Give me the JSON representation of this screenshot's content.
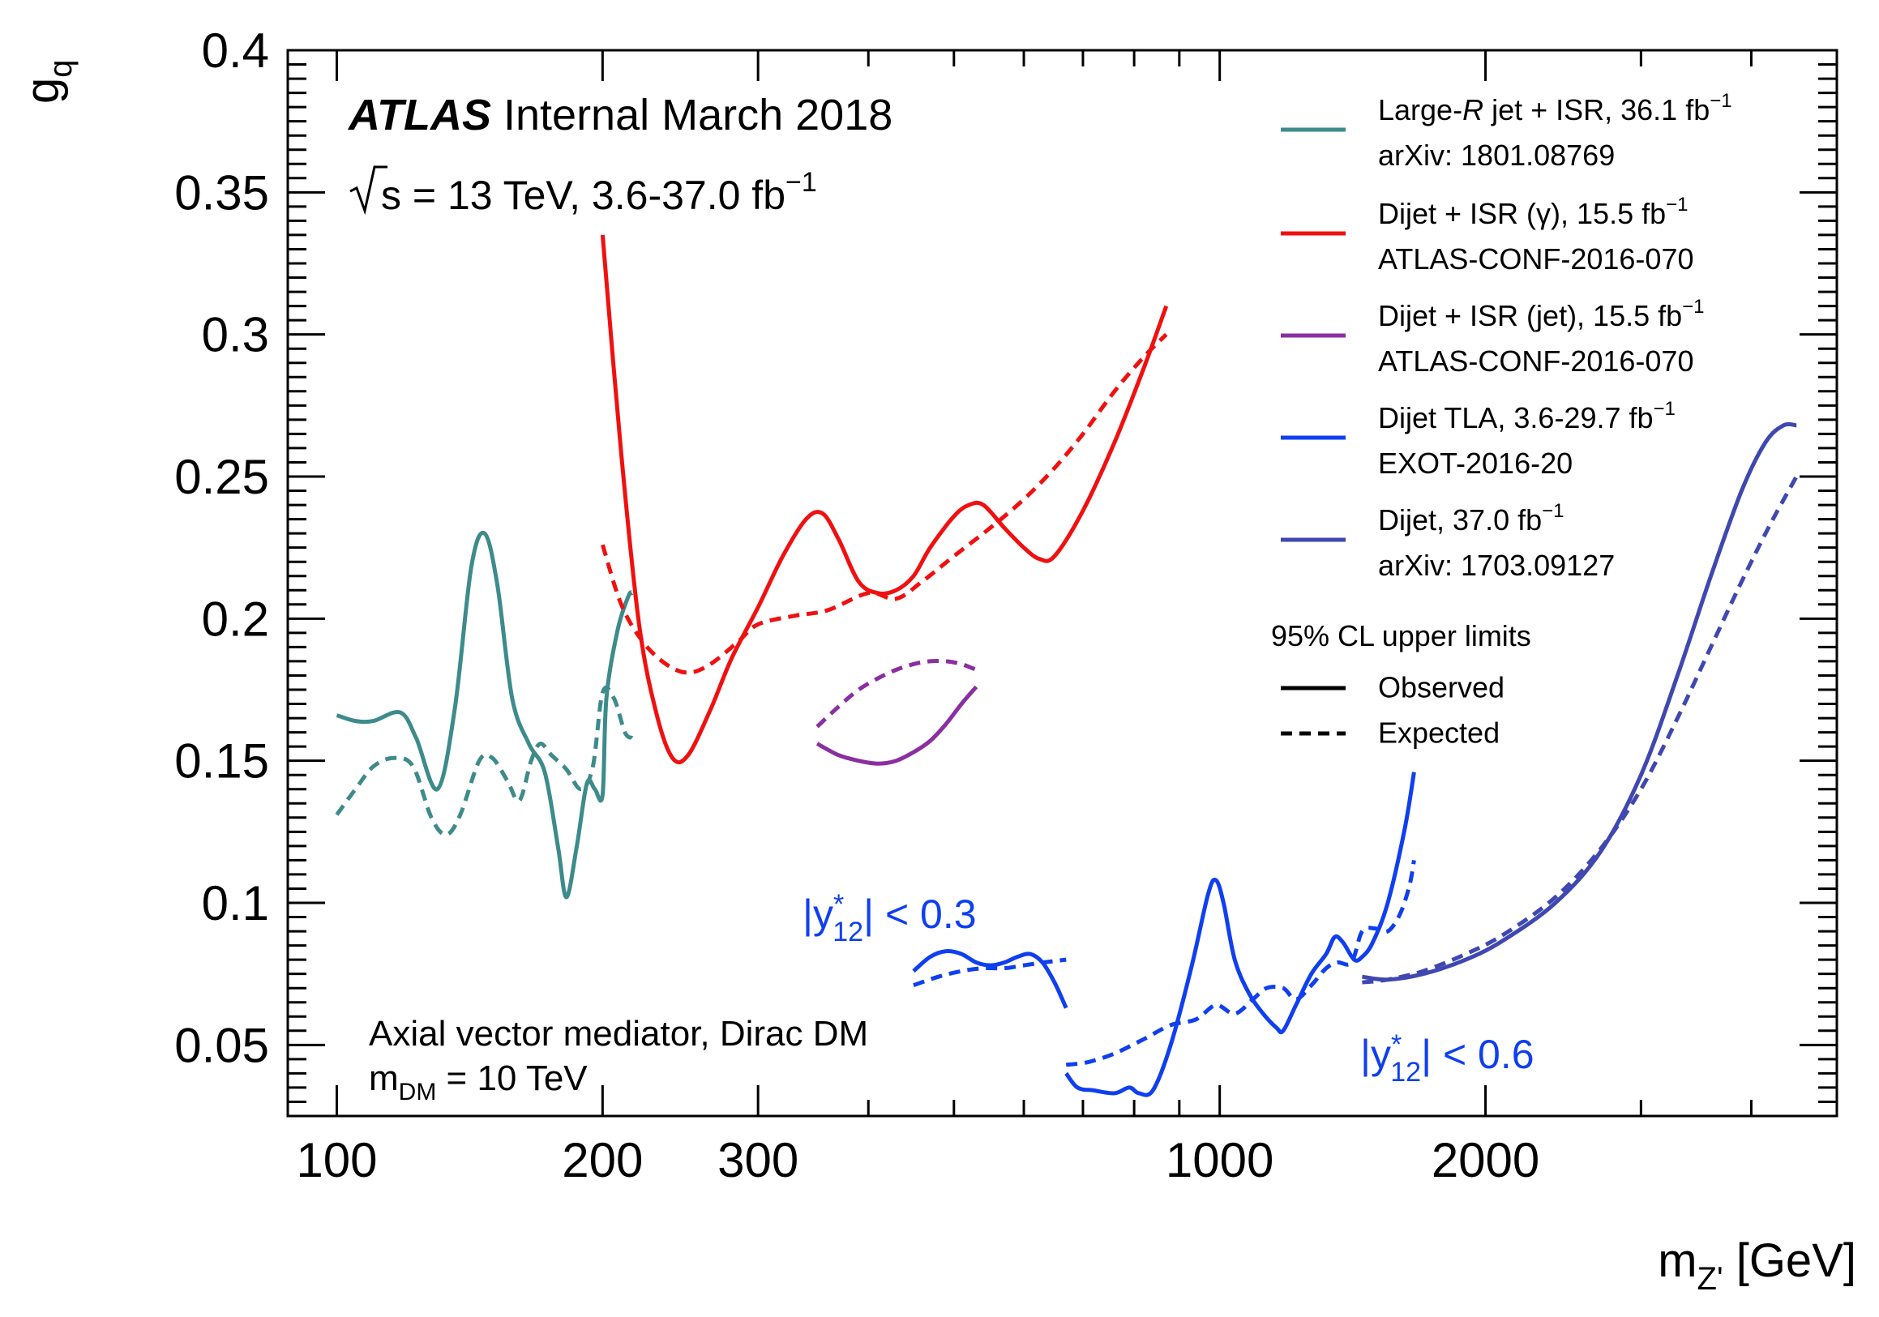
{
  "chart_data": {
    "type": "line",
    "x_scale": "log",
    "xlim": [
      88,
      5000
    ],
    "ylim": [
      0.025,
      0.4
    ],
    "xlabel": {
      "main": "m",
      "sub": "Z'",
      "rest": " [GeV]"
    },
    "ylabel": {
      "main": "g",
      "sub": "q"
    },
    "x_tick_labels": [
      {
        "value": 100,
        "label": "100"
      },
      {
        "value": 200,
        "label": "200"
      },
      {
        "value": 300,
        "label": "300"
      },
      {
        "value": 1000,
        "label": "1000"
      },
      {
        "value": 2000,
        "label": "2000"
      }
    ],
    "y_tick_labels": [
      {
        "value": 0.05,
        "label": "0.05"
      },
      {
        "value": 0.1,
        "label": "0.1"
      },
      {
        "value": 0.15,
        "label": "0.15"
      },
      {
        "value": 0.2,
        "label": "0.2"
      },
      {
        "value": 0.25,
        "label": "0.25"
      },
      {
        "value": 0.3,
        "label": "0.3"
      },
      {
        "value": 0.35,
        "label": "0.35"
      },
      {
        "value": 0.4,
        "label": "0.4"
      }
    ],
    "header": {
      "atlas": "ATLAS",
      "status": "Internal March 2018",
      "energy_prefix": "s = 13 TeV, 3.6-37.0 fb",
      "energy_sup": "−1"
    },
    "model_label": {
      "line1": "Axial vector mediator, Dirac DM",
      "line2_main": "m",
      "line2_sub": "DM",
      "line2_rest": " = 10 TeV"
    },
    "legend": {
      "entries": [
        {
          "series": "large_r",
          "line1_a": "Large-",
          "line1_i": "R",
          "line1_b": " jet + ISR, 36.1 fb",
          "sup": "−1",
          "line2": "arXiv: 1801.08769"
        },
        {
          "series": "isr_gamma",
          "line1_a": "Dijet + ISR (γ), 15.5 fb",
          "line1_i": "",
          "line1_b": "",
          "sup": "−1",
          "line2": "ATLAS-CONF-2016-070"
        },
        {
          "series": "isr_jet",
          "line1_a": "Dijet + ISR (jet), 15.5 fb",
          "line1_i": "",
          "line1_b": "",
          "sup": "−1",
          "line2": "ATLAS-CONF-2016-070"
        },
        {
          "series": "tla",
          "line1_a": "Dijet TLA, 3.6-29.7 fb",
          "line1_i": "",
          "line1_b": "",
          "sup": "−1",
          "line2": "EXOT-2016-20"
        },
        {
          "series": "dijet",
          "line1_a": "Dijet, 37.0 fb",
          "line1_i": "",
          "line1_b": "",
          "sup": "−1",
          "line2": "arXiv: 1703.09127"
        }
      ],
      "cl_title": "95% CL upper limits",
      "observed": "Observed",
      "expected": "Expected"
    },
    "annotations": [
      {
        "id": "tla03",
        "pre": "|y",
        "sup": "*",
        "sub": "12",
        "post": "| < 0.3",
        "color": "#0f3ff0"
      },
      {
        "id": "tla06",
        "pre": "|y",
        "sup": "*",
        "sub": "12",
        "post": "| < 0.6",
        "color": "#0f3ff0"
      }
    ],
    "series": [
      {
        "id": "large_r",
        "color": "#3d8b8b",
        "observed": [
          [
            100,
            0.166
          ],
          [
            105,
            0.164
          ],
          [
            110,
            0.164
          ],
          [
            118,
            0.167
          ],
          [
            123,
            0.158
          ],
          [
            130,
            0.14
          ],
          [
            136,
            0.168
          ],
          [
            142,
            0.218
          ],
          [
            147,
            0.23
          ],
          [
            152,
            0.212
          ],
          [
            158,
            0.172
          ],
          [
            165,
            0.156
          ],
          [
            172,
            0.146
          ],
          [
            178,
            0.12
          ],
          [
            182,
            0.102
          ],
          [
            187,
            0.12
          ],
          [
            192,
            0.142
          ],
          [
            196,
            0.14
          ],
          [
            200,
            0.138
          ],
          [
            202,
            0.172
          ],
          [
            208,
            0.196
          ],
          [
            214,
            0.208
          ],
          [
            216,
            0.209
          ]
        ],
        "expected": [
          [
            100,
            0.131
          ],
          [
            105,
            0.14
          ],
          [
            110,
            0.148
          ],
          [
            116,
            0.151
          ],
          [
            122,
            0.148
          ],
          [
            128,
            0.13
          ],
          [
            133,
            0.124
          ],
          [
            138,
            0.131
          ],
          [
            145,
            0.15
          ],
          [
            150,
            0.151
          ],
          [
            156,
            0.143
          ],
          [
            161,
            0.136
          ],
          [
            166,
            0.15
          ],
          [
            170,
            0.156
          ],
          [
            175,
            0.152
          ],
          [
            182,
            0.147
          ],
          [
            189,
            0.14
          ],
          [
            195,
            0.148
          ],
          [
            200,
            0.174
          ],
          [
            206,
            0.172
          ],
          [
            212,
            0.16
          ],
          [
            216,
            0.158
          ]
        ]
      },
      {
        "id": "isr_gamma",
        "color": "#f01010",
        "observed": [
          [
            200,
            0.335
          ],
          [
            210,
            0.258
          ],
          [
            220,
            0.198
          ],
          [
            230,
            0.167
          ],
          [
            240,
            0.151
          ],
          [
            250,
            0.152
          ],
          [
            265,
            0.168
          ],
          [
            280,
            0.186
          ],
          [
            300,
            0.204
          ],
          [
            320,
            0.222
          ],
          [
            340,
            0.235
          ],
          [
            355,
            0.237
          ],
          [
            370,
            0.228
          ],
          [
            390,
            0.213
          ],
          [
            410,
            0.209
          ],
          [
            430,
            0.21
          ],
          [
            450,
            0.215
          ],
          [
            470,
            0.225
          ],
          [
            500,
            0.236
          ],
          [
            520,
            0.24
          ],
          [
            540,
            0.24
          ],
          [
            570,
            0.232
          ],
          [
            600,
            0.225
          ],
          [
            625,
            0.221
          ],
          [
            650,
            0.222
          ],
          [
            700,
            0.238
          ],
          [
            760,
            0.262
          ],
          [
            820,
            0.288
          ],
          [
            870,
            0.31
          ]
        ],
        "expected": [
          [
            200,
            0.226
          ],
          [
            210,
            0.205
          ],
          [
            222,
            0.192
          ],
          [
            236,
            0.184
          ],
          [
            250,
            0.181
          ],
          [
            265,
            0.184
          ],
          [
            285,
            0.192
          ],
          [
            300,
            0.198
          ],
          [
            330,
            0.201
          ],
          [
            360,
            0.203
          ],
          [
            400,
            0.209
          ],
          [
            430,
            0.207
          ],
          [
            460,
            0.213
          ],
          [
            500,
            0.222
          ],
          [
            550,
            0.232
          ],
          [
            600,
            0.242
          ],
          [
            650,
            0.253
          ],
          [
            700,
            0.265
          ],
          [
            760,
            0.28
          ],
          [
            820,
            0.292
          ],
          [
            870,
            0.3
          ]
        ]
      },
      {
        "id": "isr_jet",
        "color": "#8b2fa0",
        "observed": [
          [
            350,
            0.156
          ],
          [
            370,
            0.152
          ],
          [
            390,
            0.15
          ],
          [
            410,
            0.149
          ],
          [
            430,
            0.15
          ],
          [
            450,
            0.153
          ],
          [
            470,
            0.157
          ],
          [
            490,
            0.163
          ],
          [
            510,
            0.17
          ],
          [
            530,
            0.176
          ]
        ],
        "expected": [
          [
            350,
            0.162
          ],
          [
            370,
            0.169
          ],
          [
            390,
            0.175
          ],
          [
            410,
            0.179
          ],
          [
            430,
            0.182
          ],
          [
            450,
            0.184
          ],
          [
            470,
            0.185
          ],
          [
            490,
            0.185
          ],
          [
            510,
            0.184
          ],
          [
            530,
            0.182
          ]
        ]
      },
      {
        "id": "tla_03",
        "color": "#0f3ff0",
        "observed": [
          [
            450,
            0.076
          ],
          [
            470,
            0.081
          ],
          [
            490,
            0.083
          ],
          [
            510,
            0.082
          ],
          [
            530,
            0.079
          ],
          [
            550,
            0.078
          ],
          [
            570,
            0.079
          ],
          [
            590,
            0.081
          ],
          [
            610,
            0.082
          ],
          [
            630,
            0.079
          ],
          [
            650,
            0.072
          ],
          [
            670,
            0.063
          ]
        ],
        "expected": [
          [
            450,
            0.071
          ],
          [
            480,
            0.074
          ],
          [
            510,
            0.076
          ],
          [
            540,
            0.077
          ],
          [
            570,
            0.077
          ],
          [
            600,
            0.078
          ],
          [
            630,
            0.079
          ],
          [
            670,
            0.08
          ]
        ]
      },
      {
        "id": "tla_06",
        "color": "#0f3ff0",
        "observed": [
          [
            670,
            0.04
          ],
          [
            690,
            0.035
          ],
          [
            720,
            0.034
          ],
          [
            760,
            0.033
          ],
          [
            790,
            0.035
          ],
          [
            810,
            0.033
          ],
          [
            840,
            0.034
          ],
          [
            880,
            0.05
          ],
          [
            930,
            0.078
          ],
          [
            970,
            0.103
          ],
          [
            990,
            0.108
          ],
          [
            1010,
            0.1
          ],
          [
            1040,
            0.08
          ],
          [
            1080,
            0.068
          ],
          [
            1120,
            0.061
          ],
          [
            1160,
            0.056
          ],
          [
            1180,
            0.055
          ],
          [
            1220,
            0.064
          ],
          [
            1270,
            0.075
          ],
          [
            1320,
            0.082
          ],
          [
            1350,
            0.088
          ],
          [
            1380,
            0.086
          ],
          [
            1420,
            0.08
          ],
          [
            1450,
            0.081
          ],
          [
            1490,
            0.086
          ],
          [
            1550,
            0.1
          ],
          [
            1620,
            0.126
          ],
          [
            1660,
            0.146
          ]
        ],
        "expected": [
          [
            670,
            0.043
          ],
          [
            710,
            0.044
          ],
          [
            760,
            0.047
          ],
          [
            820,
            0.052
          ],
          [
            880,
            0.057
          ],
          [
            940,
            0.059
          ],
          [
            990,
            0.064
          ],
          [
            1040,
            0.061
          ],
          [
            1090,
            0.066
          ],
          [
            1130,
            0.07
          ],
          [
            1180,
            0.07
          ],
          [
            1220,
            0.066
          ],
          [
            1270,
            0.071
          ],
          [
            1320,
            0.077
          ],
          [
            1360,
            0.079
          ],
          [
            1410,
            0.079
          ],
          [
            1450,
            0.09
          ],
          [
            1500,
            0.091
          ],
          [
            1550,
            0.09
          ],
          [
            1600,
            0.096
          ],
          [
            1640,
            0.106
          ],
          [
            1660,
            0.115
          ]
        ]
      },
      {
        "id": "dijet",
        "color": "#3f48b0",
        "observed": [
          [
            1450,
            0.074
          ],
          [
            1550,
            0.073
          ],
          [
            1700,
            0.075
          ],
          [
            1900,
            0.08
          ],
          [
            2100,
            0.087
          ],
          [
            2400,
            0.1
          ],
          [
            2700,
            0.118
          ],
          [
            3000,
            0.145
          ],
          [
            3300,
            0.18
          ],
          [
            3600,
            0.215
          ],
          [
            3900,
            0.245
          ],
          [
            4150,
            0.262
          ],
          [
            4350,
            0.268
          ],
          [
            4500,
            0.268
          ]
        ],
        "expected": [
          [
            1450,
            0.072
          ],
          [
            1550,
            0.073
          ],
          [
            1700,
            0.076
          ],
          [
            1900,
            0.082
          ],
          [
            2100,
            0.089
          ],
          [
            2400,
            0.102
          ],
          [
            2700,
            0.119
          ],
          [
            3000,
            0.14
          ],
          [
            3300,
            0.165
          ],
          [
            3600,
            0.19
          ],
          [
            3900,
            0.213
          ],
          [
            4200,
            0.233
          ],
          [
            4500,
            0.25
          ]
        ]
      }
    ]
  }
}
